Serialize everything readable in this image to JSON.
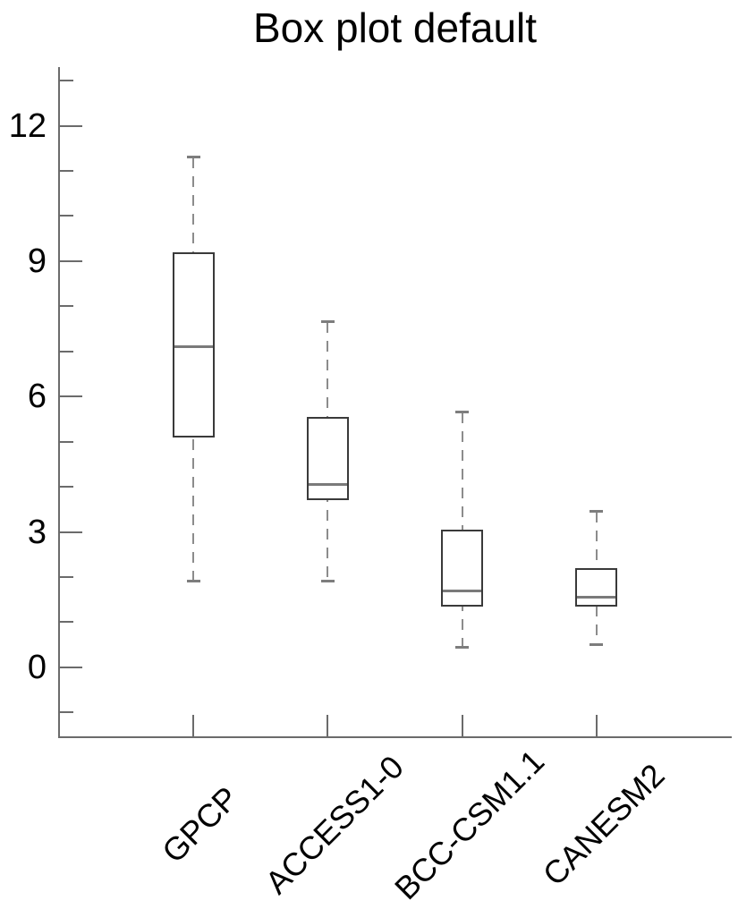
{
  "title": "Box plot default",
  "colors": {
    "background": "#ffffff",
    "axis": "#6b6b6b",
    "box_border": "#3a3a3a",
    "median_line": "#7a7a7a",
    "whisker": "#8c8c8c",
    "whisker_cap": "#7d7d7d",
    "text": "#000000"
  },
  "chart_data": {
    "type": "boxplot",
    "title": "Box plot default",
    "categories": [
      "GPCP",
      "ACCESS1-0",
      "BCC-CSM1.1",
      "CANESM2"
    ],
    "series": [
      {
        "name": "GPCP",
        "whisker_low": 1.9,
        "q1": 5.1,
        "median": 7.1,
        "q3": 9.2,
        "whisker_high": 11.3
      },
      {
        "name": "ACCESS1-0",
        "whisker_low": 1.9,
        "q1": 3.7,
        "median": 4.05,
        "q3": 5.55,
        "whisker_high": 7.65
      },
      {
        "name": "BCC-CSM1.1",
        "whisker_low": 0.45,
        "q1": 1.35,
        "median": 1.7,
        "q3": 3.05,
        "whisker_high": 5.65
      },
      {
        "name": "CANESM2",
        "whisker_low": 0.5,
        "q1": 1.35,
        "median": 1.55,
        "q3": 2.2,
        "whisker_high": 3.45
      }
    ],
    "yticks_major": [
      0,
      3,
      6,
      9,
      12
    ],
    "yticks_minor": [
      -1,
      1,
      2,
      4,
      5,
      7,
      8,
      10,
      11,
      13
    ],
    "ylim": [
      -1.55,
      13.3
    ],
    "xlabel": "",
    "ylabel": "",
    "grid": false,
    "legend": null
  }
}
